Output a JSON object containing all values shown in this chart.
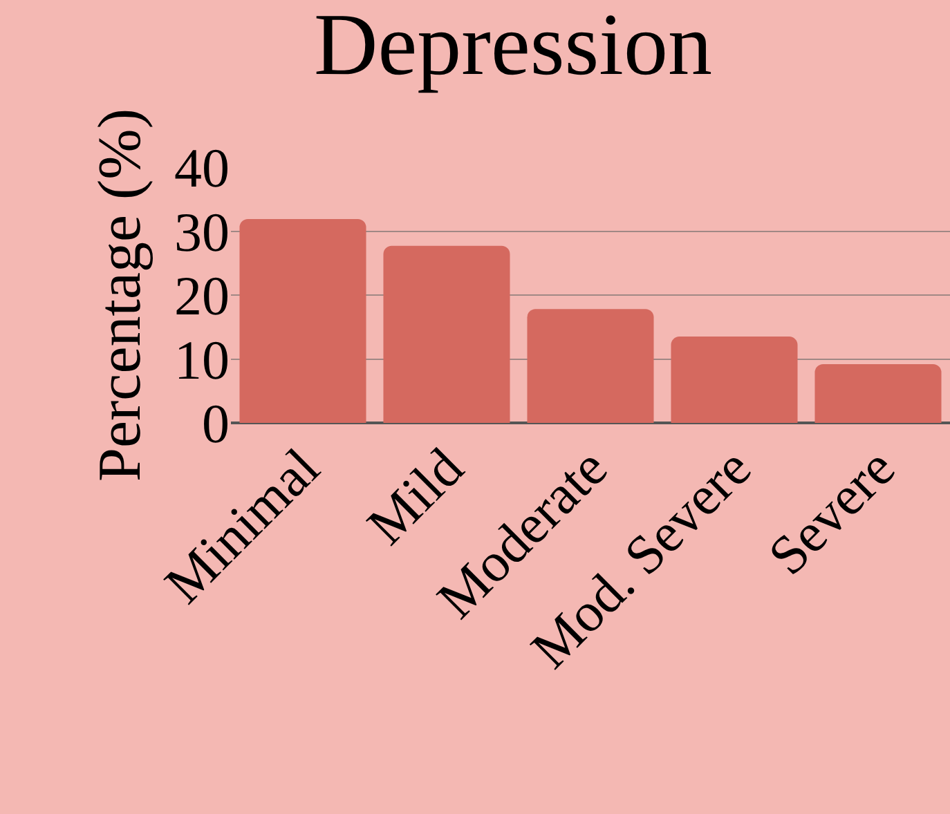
{
  "chart_data": {
    "type": "bar",
    "title": "Depression",
    "ylabel": "Percentage (%)",
    "categories": [
      "Minimal",
      "Mild",
      "Moderate",
      "Mod. Severe",
      "Severe"
    ],
    "values": [
      31.9,
      27.7,
      17.8,
      13.5,
      9.2
    ],
    "color": "#d5695f",
    "ylim": [
      0,
      40
    ],
    "yticks": [
      0,
      10,
      20,
      30,
      40
    ],
    "grid": "y"
  }
}
